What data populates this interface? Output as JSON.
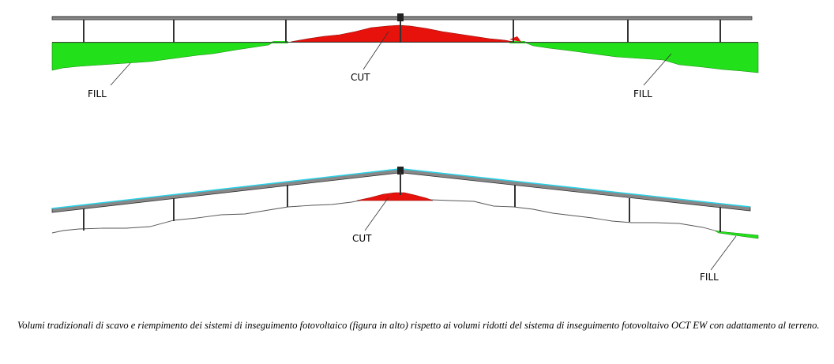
{
  "top_diagram": {
    "cut_label": "CUT",
    "fill_left_label": "FILL",
    "fill_right_label": "FILL"
  },
  "bottom_diagram": {
    "cut_label": "CUT",
    "fill_label": "FILL"
  },
  "caption": "Volumi tradizionali di scavo e riempimento dei sistemi di inseguimento fotovoltaico (figura in alto) rispetto ai volumi ridotti del sistema di inseguimento fotovoltaivo OCT EW con adattamento al terreno.",
  "colors": {
    "cut": "#e8120c",
    "fill": "#22e01a",
    "structure": "#333333",
    "panel_edge": "#29d3e8",
    "terrain_line": "#555555"
  }
}
